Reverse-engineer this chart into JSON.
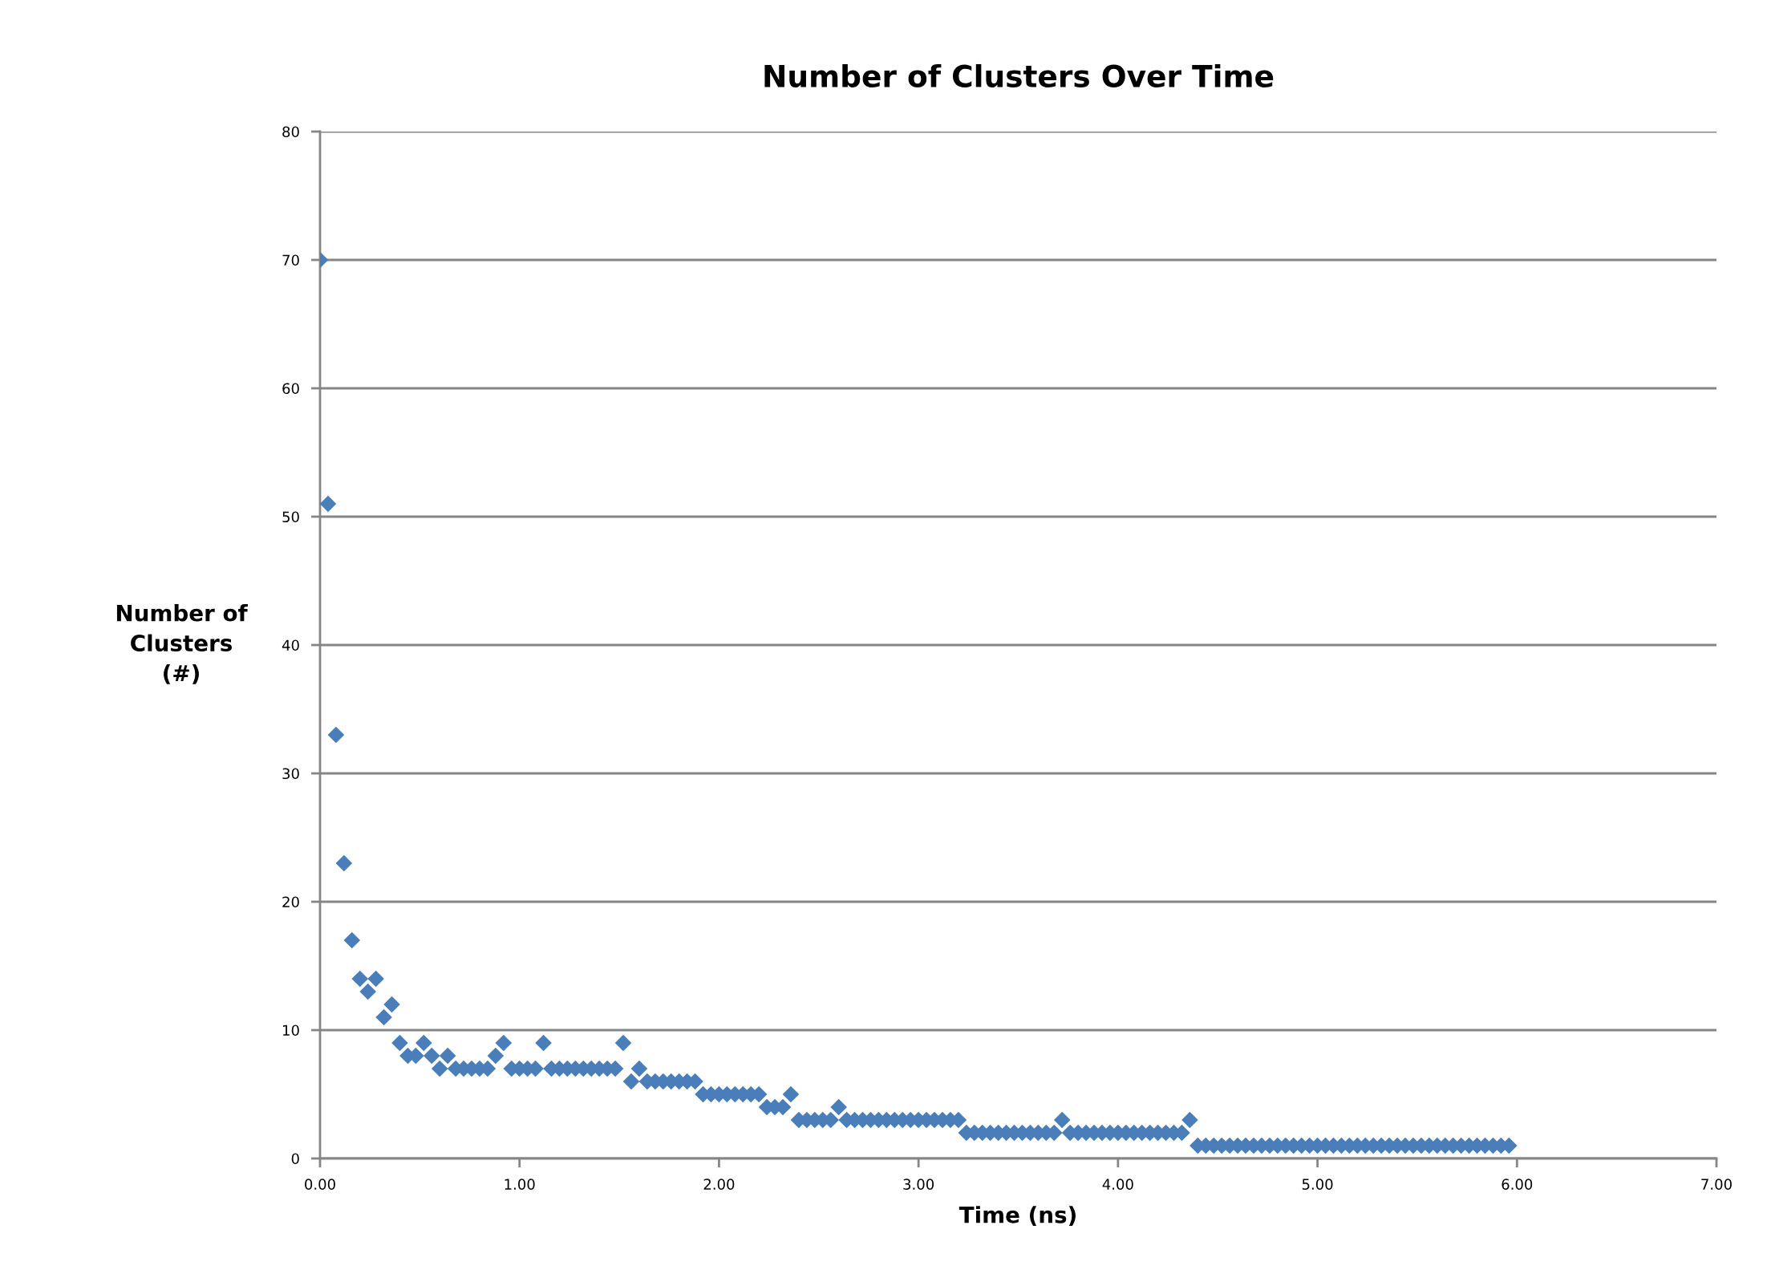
{
  "chart_data": {
    "type": "scatter",
    "title": "Number of Clusters Over Time",
    "xlabel": "Time (ns)",
    "ylabel": "Number of\nClusters\n(#)",
    "x": [
      0,
      0.04,
      0.08,
      0.12,
      0.16,
      0.2,
      0.24,
      0.28,
      0.32,
      0.36,
      0.4,
      0.44,
      0.48,
      0.52,
      0.56,
      0.6,
      0.64,
      0.68,
      0.72,
      0.76,
      0.8,
      0.84,
      0.88,
      0.92,
      0.96,
      1.0,
      1.04,
      1.08,
      1.12,
      1.16,
      1.2,
      1.24,
      1.28,
      1.32,
      1.36,
      1.4,
      1.44,
      1.48,
      1.52,
      1.56,
      1.6,
      1.64,
      1.68,
      1.72,
      1.76,
      1.8,
      1.84,
      1.88,
      1.92,
      1.96,
      2.0,
      2.04,
      2.08,
      2.12,
      2.16,
      2.2,
      2.24,
      2.28,
      2.32,
      2.36,
      2.4,
      2.44,
      2.48,
      2.52,
      2.56,
      2.6,
      2.64,
      2.68,
      2.72,
      2.76,
      2.8,
      2.84,
      2.88,
      2.92,
      2.96,
      3.0,
      3.04,
      3.08,
      3.12,
      3.16,
      3.2,
      3.24,
      3.28,
      3.32,
      3.36,
      3.4,
      3.44,
      3.48,
      3.52,
      3.56,
      3.6,
      3.64,
      3.68,
      3.72,
      3.76,
      3.8,
      3.84,
      3.88,
      3.92,
      3.96,
      4.0,
      4.04,
      4.08,
      4.12,
      4.16,
      4.2,
      4.24,
      4.28,
      4.32,
      4.36,
      4.4,
      4.44,
      4.48,
      4.52,
      4.56,
      4.6,
      4.64,
      4.68,
      4.72,
      4.76,
      4.8,
      4.84,
      4.88,
      4.92,
      4.96,
      5.0,
      5.04,
      5.08,
      5.12,
      5.16,
      5.2,
      5.24,
      5.28,
      5.32,
      5.36,
      5.4,
      5.44,
      5.48,
      5.52,
      5.56,
      5.6,
      5.64,
      5.68,
      5.72,
      5.76,
      5.8,
      5.84,
      5.88,
      5.92,
      5.96
    ],
    "series": [
      {
        "color": "#4a7ebb",
        "values": [
          70,
          51,
          33,
          23,
          17,
          14,
          13,
          14,
          11,
          12,
          9,
          8,
          8,
          9,
          8,
          7,
          8,
          7,
          7,
          7,
          7,
          7,
          8,
          9,
          7,
          7,
          7,
          7,
          9,
          7,
          7,
          7,
          7,
          7,
          7,
          7,
          7,
          7,
          9,
          6,
          7,
          6,
          6,
          6,
          6,
          6,
          6,
          6,
          5,
          5,
          5,
          5,
          5,
          5,
          5,
          5,
          4,
          4,
          4,
          5,
          3,
          3,
          3,
          3,
          3,
          4,
          3,
          3,
          3,
          3,
          3,
          3,
          3,
          3,
          3,
          3,
          3,
          3,
          3,
          3,
          3,
          2,
          2,
          2,
          2,
          2,
          2,
          2,
          2,
          2,
          2,
          2,
          2,
          3,
          2,
          2,
          2,
          2,
          2,
          2,
          2,
          2,
          2,
          2,
          2,
          2,
          2,
          2,
          2,
          3,
          1,
          1,
          1,
          1,
          1,
          1,
          1,
          1,
          1,
          1,
          1,
          1,
          1,
          1,
          1,
          1,
          1,
          1,
          1,
          1,
          1,
          1,
          1,
          1,
          1,
          1,
          1,
          1,
          1,
          1,
          1,
          1,
          1,
          1,
          1,
          1,
          1,
          1,
          1,
          1
        ]
      }
    ],
    "xlim": [
      0,
      7
    ],
    "ylim": [
      0,
      80
    ],
    "xticks": [
      {
        "value": 0,
        "label": "0.00"
      },
      {
        "value": 1,
        "label": "1.00"
      },
      {
        "value": 2,
        "label": "2.00"
      },
      {
        "value": 3,
        "label": "3.00"
      },
      {
        "value": 4,
        "label": "4.00"
      },
      {
        "value": 5,
        "label": "5.00"
      },
      {
        "value": 6,
        "label": "6.00"
      },
      {
        "value": 7,
        "label": "7.00"
      }
    ],
    "yticks": [
      0,
      10,
      20,
      30,
      40,
      50,
      60,
      70,
      80
    ],
    "grid": "y",
    "marker": "diamond",
    "legend": false
  }
}
